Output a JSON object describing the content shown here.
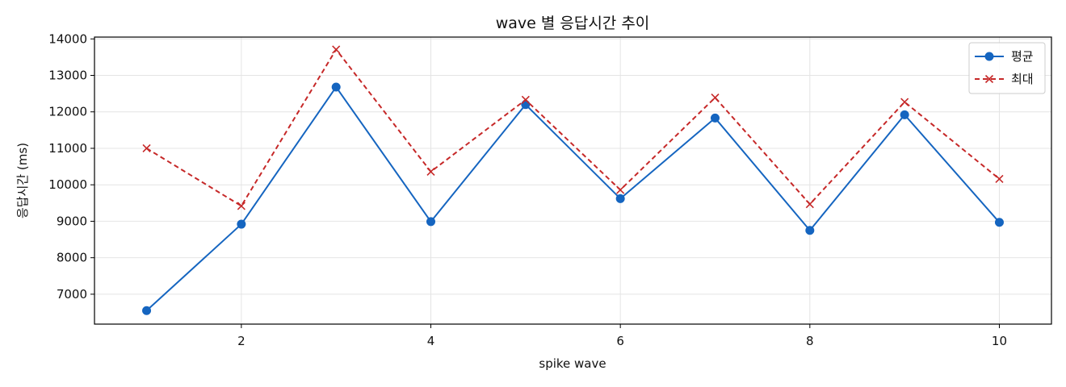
{
  "chart_data": {
    "type": "line",
    "title": "wave 별 응답시간 추이",
    "xlabel": "spike wave",
    "ylabel": "응답시간 (ms)",
    "x": [
      1,
      2,
      3,
      4,
      5,
      6,
      7,
      8,
      9,
      10
    ],
    "xlim": [
      0.45,
      10.55
    ],
    "ylim": [
      6180,
      14050
    ],
    "xticks": [
      2,
      4,
      6,
      8,
      10
    ],
    "yticks": [
      7000,
      8000,
      9000,
      10000,
      11000,
      12000,
      13000,
      14000
    ],
    "grid": true,
    "legend_position": "top-right",
    "series": [
      {
        "name": "평균",
        "color": "#1565c0",
        "line_style": "solid",
        "marker": "circle",
        "values": [
          6550,
          8920,
          12680,
          8990,
          12200,
          9620,
          11830,
          8750,
          11920,
          8970
        ]
      },
      {
        "name": "최대",
        "color": "#c62828",
        "line_style": "dashed",
        "marker": "x",
        "values": [
          11000,
          9420,
          13710,
          10360,
          12330,
          9860,
          12390,
          9470,
          12270,
          10160
        ]
      }
    ]
  }
}
